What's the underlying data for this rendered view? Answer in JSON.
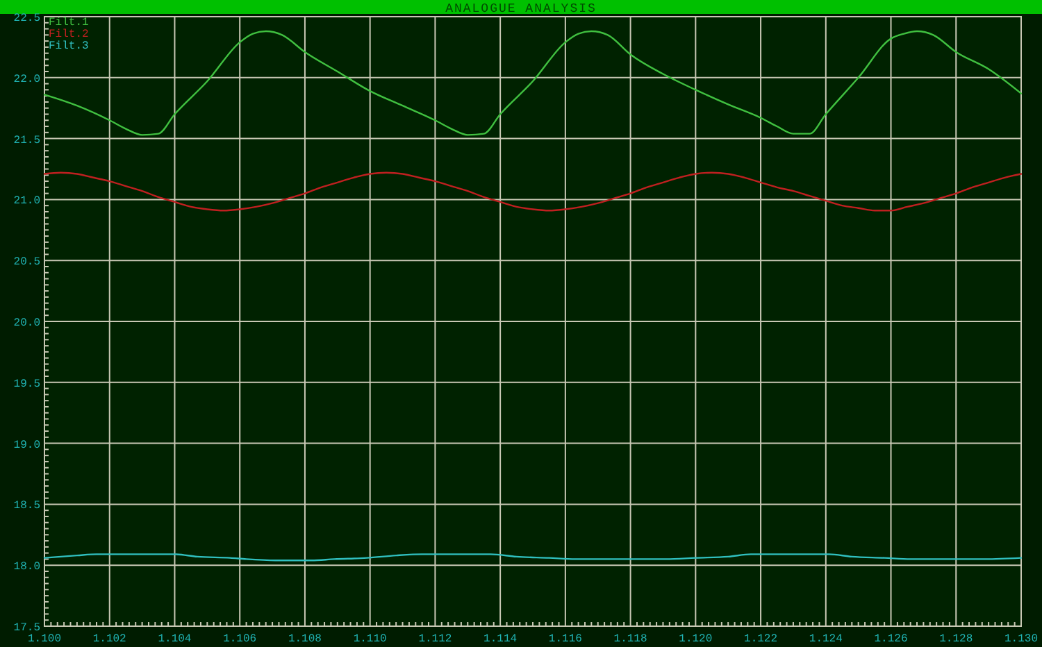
{
  "chart_data": {
    "type": "line",
    "title": "ANALOGUE ANALYSIS",
    "xlim": [
      1.1,
      1.13
    ],
    "ylim": [
      17.5,
      22.5
    ],
    "grid": true,
    "legend": "top left",
    "line_style": "solid",
    "xticks": [
      {
        "value": 1.1,
        "label": "1.100"
      },
      {
        "value": 1.1002,
        "label": null
      },
      {
        "value": 1.1004,
        "label": null
      },
      {
        "value": 1.1006,
        "label": null
      },
      {
        "value": 1.1008,
        "label": null
      },
      {
        "value": 1.101,
        "label": null
      },
      {
        "value": 1.1012,
        "label": null
      },
      {
        "value": 1.1014,
        "label": null
      },
      {
        "value": 1.1016,
        "label": null
      },
      {
        "value": 1.1018,
        "label": null
      },
      1.102,
      {
        "value": 1.1022,
        "label": null
      },
      {
        "value": 1.1024,
        "label": null
      },
      {
        "value": 1.1026,
        "label": null
      },
      {
        "value": 1.1028,
        "label": null
      },
      {
        "value": 1.103,
        "label": null
      },
      {
        "value": 1.1032,
        "label": null
      },
      {
        "value": 1.1034,
        "label": null
      },
      {
        "value": 1.1036,
        "label": null
      },
      {
        "value": 1.1038,
        "label": null
      },
      1.104,
      {
        "value": 1.1042,
        "label": null
      },
      {
        "value": 1.1044,
        "label": null
      },
      {
        "value": 1.1046,
        "label": null
      },
      {
        "value": 1.1048,
        "label": null
      },
      {
        "value": 1.105,
        "label": null
      },
      {
        "value": 1.1052,
        "label": null
      },
      {
        "value": 1.1054,
        "label": null
      },
      {
        "value": 1.1056,
        "label": null
      },
      {
        "value": 1.1058,
        "label": null
      },
      1.106,
      {
        "value": 1.1062,
        "label": null
      },
      {
        "value": 1.1064,
        "label": null
      },
      {
        "value": 1.1066,
        "label": null
      },
      {
        "value": 1.1068,
        "label": null
      },
      {
        "value": 1.107,
        "label": null
      },
      {
        "value": 1.1072,
        "label": null
      },
      {
        "value": 1.1074,
        "label": null
      },
      {
        "value": 1.1076,
        "label": null
      },
      {
        "value": 1.1078,
        "label": null
      },
      1.108,
      {
        "value": 1.1082,
        "label": null
      },
      {
        "value": 1.1084,
        "label": null
      },
      {
        "value": 1.1086,
        "label": null
      },
      {
        "value": 1.1088,
        "label": null
      },
      {
        "value": 1.109,
        "label": null
      },
      {
        "value": 1.1092,
        "label": null
      },
      {
        "value": 1.1094,
        "label": null
      },
      {
        "value": 1.1096,
        "label": null
      },
      {
        "value": 1.1098,
        "label": null
      },
      {
        "value": 1.11,
        "label": "1.110"
      },
      {
        "value": 1.1102,
        "label": null
      },
      {
        "value": 1.1104,
        "label": null
      },
      {
        "value": 1.1106,
        "label": null
      },
      {
        "value": 1.1108,
        "label": null
      },
      {
        "value": 1.111,
        "label": null
      },
      {
        "value": 1.1112,
        "label": null
      },
      {
        "value": 1.1114,
        "label": null
      },
      {
        "value": 1.1116,
        "label": null
      },
      {
        "value": 1.1118,
        "label": null
      },
      1.112,
      {
        "value": 1.1122,
        "label": null
      },
      {
        "value": 1.1124,
        "label": null
      },
      {
        "value": 1.1126,
        "label": null
      },
      {
        "value": 1.1128,
        "label": null
      },
      {
        "value": 1.113,
        "label": null
      },
      {
        "value": 1.1132,
        "label": null
      },
      {
        "value": 1.1134,
        "label": null
      },
      {
        "value": 1.1136,
        "label": null
      },
      {
        "value": 1.1138,
        "label": null
      },
      1.114,
      {
        "value": 1.1142,
        "label": null
      },
      {
        "value": 1.1144,
        "label": null
      },
      {
        "value": 1.1146,
        "label": null
      },
      {
        "value": 1.1148,
        "label": null
      },
      {
        "value": 1.115,
        "label": null
      },
      {
        "value": 1.1152,
        "label": null
      },
      {
        "value": 1.1154,
        "label": null
      },
      {
        "value": 1.1156,
        "label": null
      },
      {
        "value": 1.1158,
        "label": null
      },
      1.116,
      {
        "value": 1.1162,
        "label": null
      },
      {
        "value": 1.1164,
        "label": null
      },
      {
        "value": 1.1166,
        "label": null
      },
      {
        "value": 1.1168,
        "label": null
      },
      {
        "value": 1.117,
        "label": null
      },
      {
        "value": 1.1172,
        "label": null
      },
      {
        "value": 1.1174,
        "label": null
      },
      {
        "value": 1.1176,
        "label": null
      },
      {
        "value": 1.1178,
        "label": null
      },
      1.118,
      {
        "value": 1.1182,
        "label": null
      },
      {
        "value": 1.1184,
        "label": null
      },
      {
        "value": 1.1186,
        "label": null
      },
      {
        "value": 1.1188,
        "label": null
      },
      {
        "value": 1.119,
        "label": null
      },
      {
        "value": 1.1192,
        "label": null
      },
      {
        "value": 1.1194,
        "label": null
      },
      {
        "value": 1.1196,
        "label": null
      },
      {
        "value": 1.1198,
        "label": null
      },
      {
        "value": 1.12,
        "label": "1.120"
      },
      {
        "value": 1.1202,
        "label": null
      },
      {
        "value": 1.1204,
        "label": null
      },
      {
        "value": 1.1206,
        "label": null
      },
      {
        "value": 1.1208,
        "label": null
      },
      {
        "value": 1.121,
        "label": null
      },
      {
        "value": 1.1212,
        "label": null
      },
      {
        "value": 1.1214,
        "label": null
      },
      {
        "value": 1.1216,
        "label": null
      },
      {
        "value": 1.1218,
        "label": null
      },
      1.122,
      {
        "value": 1.1222,
        "label": null
      },
      {
        "value": 1.1224,
        "label": null
      },
      {
        "value": 1.1226,
        "label": null
      },
      {
        "value": 1.1228,
        "label": null
      },
      {
        "value": 1.123,
        "label": null
      },
      {
        "value": 1.1232,
        "label": null
      },
      {
        "value": 1.1234,
        "label": null
      },
      {
        "value": 1.1236,
        "label": null
      },
      {
        "value": 1.1238,
        "label": null
      },
      1.124,
      {
        "value": 1.1242,
        "label": null
      },
      {
        "value": 1.1244,
        "label": null
      },
      {
        "value": 1.1246,
        "label": null
      },
      {
        "value": 1.1248,
        "label": null
      },
      {
        "value": 1.125,
        "label": null
      },
      {
        "value": 1.1252,
        "label": null
      },
      {
        "value": 1.1254,
        "label": null
      },
      {
        "value": 1.1256,
        "label": null
      },
      {
        "value": 1.1258,
        "label": null
      },
      1.126,
      {
        "value": 1.1262,
        "label": null
      },
      {
        "value": 1.1264,
        "label": null
      },
      {
        "value": 1.1266,
        "label": null
      },
      {
        "value": 1.1268,
        "label": null
      },
      {
        "value": 1.127,
        "label": null
      },
      {
        "value": 1.1272,
        "label": null
      },
      {
        "value": 1.1274,
        "label": null
      },
      {
        "value": 1.1276,
        "label": null
      },
      {
        "value": 1.1278,
        "label": null
      },
      1.128,
      {
        "value": 1.1282,
        "label": null
      },
      {
        "value": 1.1284,
        "label": null
      },
      {
        "value": 1.1286,
        "label": null
      },
      {
        "value": 1.1288,
        "label": null
      },
      {
        "value": 1.129,
        "label": null
      },
      {
        "value": 1.1292,
        "label": null
      },
      {
        "value": 1.1294,
        "label": null
      },
      {
        "value": 1.1296,
        "label": null
      },
      {
        "value": 1.1298,
        "label": null
      },
      {
        "value": 1.13,
        "label": "1.130"
      }
    ],
    "yticks": [
      17.5,
      {
        "value": 17.55,
        "label": null
      },
      {
        "value": 17.6,
        "label": null
      },
      {
        "value": 17.65,
        "label": null
      },
      {
        "value": 17.7,
        "label": null
      },
      {
        "value": 17.75,
        "label": null
      },
      {
        "value": 17.8,
        "label": null
      },
      {
        "value": 17.85,
        "label": null
      },
      {
        "value": 17.9,
        "label": null
      },
      {
        "value": 17.95,
        "label": null
      },
      {
        "value": 18,
        "label": "18.0"
      },
      {
        "value": 18.05,
        "label": null
      },
      {
        "value": 18.1,
        "label": null
      },
      {
        "value": 18.15,
        "label": null
      },
      {
        "value": 18.2,
        "label": null
      },
      {
        "value": 18.25,
        "label": null
      },
      {
        "value": 18.3,
        "label": null
      },
      {
        "value": 18.35,
        "label": null
      },
      {
        "value": 18.4,
        "label": null
      },
      {
        "value": 18.45,
        "label": null
      },
      18.5,
      {
        "value": 18.55,
        "label": null
      },
      {
        "value": 18.6,
        "label": null
      },
      {
        "value": 18.65,
        "label": null
      },
      {
        "value": 18.7,
        "label": null
      },
      {
        "value": 18.75,
        "label": null
      },
      {
        "value": 18.8,
        "label": null
      },
      {
        "value": 18.85,
        "label": null
      },
      {
        "value": 18.9,
        "label": null
      },
      {
        "value": 18.95,
        "label": null
      },
      {
        "value": 19,
        "label": "19.0"
      },
      {
        "value": 19.05,
        "label": null
      },
      {
        "value": 19.1,
        "label": null
      },
      {
        "value": 19.15,
        "label": null
      },
      {
        "value": 19.2,
        "label": null
      },
      {
        "value": 19.25,
        "label": null
      },
      {
        "value": 19.3,
        "label": null
      },
      {
        "value": 19.35,
        "label": null
      },
      {
        "value": 19.4,
        "label": null
      },
      {
        "value": 19.45,
        "label": null
      },
      19.5,
      {
        "value": 19.55,
        "label": null
      },
      {
        "value": 19.6,
        "label": null
      },
      {
        "value": 19.65,
        "label": null
      },
      {
        "value": 19.7,
        "label": null
      },
      {
        "value": 19.75,
        "label": null
      },
      {
        "value": 19.8,
        "label": null
      },
      {
        "value": 19.85,
        "label": null
      },
      {
        "value": 19.9,
        "label": null
      },
      {
        "value": 19.95,
        "label": null
      },
      {
        "value": 20,
        "label": "20.0"
      },
      {
        "value": 20.05,
        "label": null
      },
      {
        "value": 20.1,
        "label": null
      },
      {
        "value": 20.15,
        "label": null
      },
      {
        "value": 20.2,
        "label": null
      },
      {
        "value": 20.25,
        "label": null
      },
      {
        "value": 20.3,
        "label": null
      },
      {
        "value": 20.35,
        "label": null
      },
      {
        "value": 20.4,
        "label": null
      },
      {
        "value": 20.45,
        "label": null
      },
      20.5,
      {
        "value": 20.55,
        "label": null
      },
      {
        "value": 20.6,
        "label": null
      },
      {
        "value": 20.65,
        "label": null
      },
      {
        "value": 20.7,
        "label": null
      },
      {
        "value": 20.75,
        "label": null
      },
      {
        "value": 20.8,
        "label": null
      },
      {
        "value": 20.85,
        "label": null
      },
      {
        "value": 20.9,
        "label": null
      },
      {
        "value": 20.95,
        "label": null
      },
      {
        "value": 21,
        "label": "21.0"
      },
      {
        "value": 21.05,
        "label": null
      },
      {
        "value": 21.1,
        "label": null
      },
      {
        "value": 21.15,
        "label": null
      },
      {
        "value": 21.2,
        "label": null
      },
      {
        "value": 21.25,
        "label": null
      },
      {
        "value": 21.3,
        "label": null
      },
      {
        "value": 21.35,
        "label": null
      },
      {
        "value": 21.4,
        "label": null
      },
      {
        "value": 21.45,
        "label": null
      },
      21.5,
      {
        "value": 21.55,
        "label": null
      },
      {
        "value": 21.6,
        "label": null
      },
      {
        "value": 21.65,
        "label": null
      },
      {
        "value": 21.7,
        "label": null
      },
      {
        "value": 21.75,
        "label": null
      },
      {
        "value": 21.8,
        "label": null
      },
      {
        "value": 21.85,
        "label": null
      },
      {
        "value": 21.9,
        "label": null
      },
      {
        "value": 21.95,
        "label": null
      },
      {
        "value": 22,
        "label": "22.0"
      },
      {
        "value": 22.05,
        "label": null
      },
      {
        "value": 22.1,
        "label": null
      },
      {
        "value": 22.15,
        "label": null
      },
      {
        "value": 22.2,
        "label": null
      },
      {
        "value": 22.25,
        "label": null
      },
      {
        "value": 22.3,
        "label": null
      },
      {
        "value": 22.35,
        "label": null
      },
      {
        "value": 22.4,
        "label": null
      },
      {
        "value": 22.45,
        "label": null
      },
      22.5
    ],
    "series": [
      {
        "name": "Filt.1",
        "color": "#40c040",
        "x": [
          1.1,
          1.101,
          1.102,
          1.1025,
          1.103,
          1.1035,
          1.104,
          1.105,
          1.106,
          1.1064,
          1.1068,
          1.1073,
          1.108,
          1.109,
          1.11,
          1.111,
          1.112,
          1.1125,
          1.113,
          1.1135,
          1.114,
          1.115,
          1.116,
          1.1164,
          1.1168,
          1.1173,
          1.118,
          1.119,
          1.12,
          1.121,
          1.122,
          1.1225,
          1.123,
          1.1235,
          1.124,
          1.125,
          1.126,
          1.1264,
          1.1268,
          1.1273,
          1.128,
          1.129,
          1.13
        ],
        "values": [
          21.86,
          21.77,
          21.65,
          21.58,
          21.53,
          21.54,
          21.7,
          21.97,
          22.29,
          22.36,
          22.38,
          22.35,
          22.21,
          22.05,
          21.89,
          21.77,
          21.65,
          21.58,
          21.53,
          21.54,
          21.7,
          21.97,
          22.29,
          22.36,
          22.38,
          22.35,
          22.19,
          22.03,
          21.9,
          21.78,
          21.67,
          21.6,
          21.54,
          21.54,
          21.7,
          22.0,
          22.32,
          22.36,
          22.38,
          22.35,
          22.21,
          22.07,
          21.87
        ]
      },
      {
        "name": "Filt.2",
        "color": "#c02020",
        "x": [
          1.1,
          1.1005,
          1.101,
          1.1015,
          1.102,
          1.1025,
          1.103,
          1.1035,
          1.104,
          1.1045,
          1.105,
          1.1055,
          1.106,
          1.1065,
          1.107,
          1.1075,
          1.108,
          1.1085,
          1.109,
          1.1095,
          1.11,
          1.1105,
          1.111,
          1.1115,
          1.112,
          1.1125,
          1.113,
          1.1135,
          1.114,
          1.1145,
          1.115,
          1.1155,
          1.116,
          1.1165,
          1.117,
          1.1175,
          1.118,
          1.1185,
          1.119,
          1.1195,
          1.12,
          1.1205,
          1.121,
          1.1215,
          1.122,
          1.1225,
          1.123,
          1.1235,
          1.124,
          1.1245,
          1.125,
          1.1255,
          1.126,
          1.1265,
          1.127,
          1.1275,
          1.128,
          1.1285,
          1.129,
          1.1295,
          1.13
        ],
        "values": [
          21.21,
          21.22,
          21.21,
          21.18,
          21.15,
          21.11,
          21.07,
          21.02,
          20.98,
          20.94,
          20.92,
          20.91,
          20.92,
          20.94,
          20.97,
          21.01,
          21.05,
          21.1,
          21.14,
          21.18,
          21.21,
          21.22,
          21.21,
          21.18,
          21.15,
          21.11,
          21.07,
          21.02,
          20.98,
          20.94,
          20.92,
          20.91,
          20.92,
          20.94,
          20.97,
          21.01,
          21.05,
          21.1,
          21.14,
          21.18,
          21.21,
          21.22,
          21.21,
          21.18,
          21.14,
          21.1,
          21.07,
          21.03,
          20.99,
          20.95,
          20.93,
          20.91,
          20.91,
          20.94,
          20.97,
          21.01,
          21.05,
          21.1,
          21.14,
          21.18,
          21.21
        ]
      },
      {
        "name": "Filt.3",
        "color": "#30c0c0",
        "x": [
          1.1,
          1.101,
          1.1016,
          1.104,
          1.1047,
          1.1057,
          1.1062,
          1.1071,
          1.1082,
          1.1089,
          1.1099,
          1.1108,
          1.1116,
          1.1137,
          1.1145,
          1.1155,
          1.1163,
          1.1175,
          1.1191,
          1.12,
          1.121,
          1.1217,
          1.1241,
          1.1248,
          1.1258,
          1.1266,
          1.1289,
          1.13
        ],
        "values": [
          18.06,
          18.08,
          18.09,
          18.09,
          18.07,
          18.06,
          18.05,
          18.04,
          18.04,
          18.05,
          18.06,
          18.08,
          18.09,
          18.09,
          18.07,
          18.06,
          18.05,
          18.05,
          18.05,
          18.06,
          18.07,
          18.09,
          18.09,
          18.07,
          18.06,
          18.05,
          18.05,
          18.06
        ]
      }
    ]
  }
}
